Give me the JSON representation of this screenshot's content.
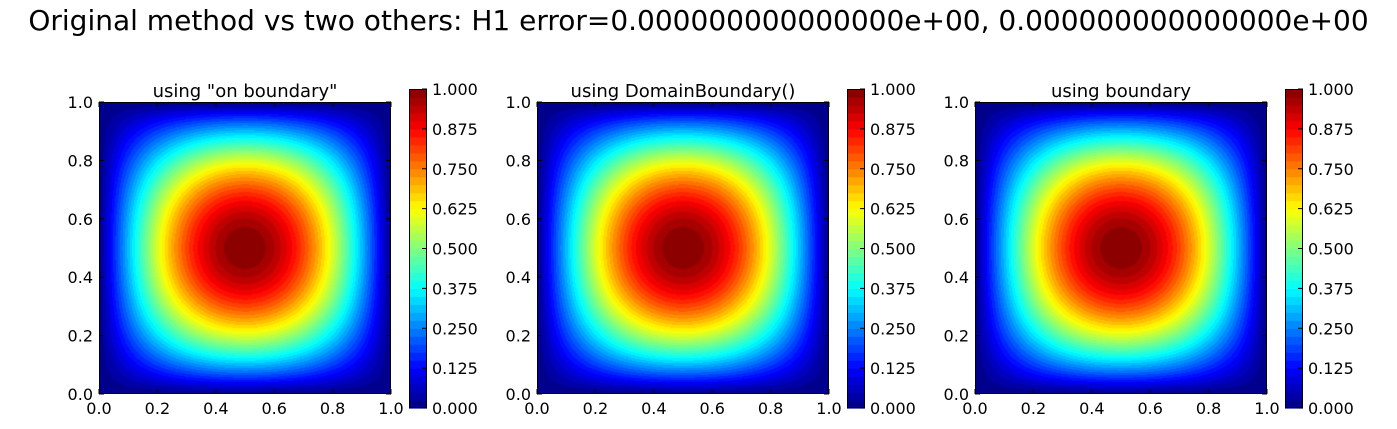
{
  "suptitle": "Original method vs two others: H1 error=0.000000000000000e+00, 0.000000000000000e+00",
  "chart_data": [
    {
      "type": "heatmap",
      "title": "using \"on boundary\"",
      "xlim": [
        0.0,
        1.0
      ],
      "ylim": [
        0.0,
        1.0
      ],
      "x_ticks": [
        "0.0",
        "0.2",
        "0.4",
        "0.6",
        "0.8",
        "1.0"
      ],
      "y_ticks": [
        "0.0",
        "0.2",
        "0.4",
        "0.6",
        "0.8",
        "1.0"
      ],
      "function": "sin(pi*x)*sin(pi*y)",
      "peak": {
        "x": 0.5,
        "y": 0.5,
        "value": 1.0
      },
      "colormap": "jet",
      "colorbar_ticks": [
        "0.000",
        "0.125",
        "0.250",
        "0.375",
        "0.500",
        "0.625",
        "0.750",
        "0.875",
        "1.000"
      ],
      "colorbar_range": [
        0.0,
        1.0
      ]
    },
    {
      "type": "heatmap",
      "title": "using DomainBoundary()",
      "xlim": [
        0.0,
        1.0
      ],
      "ylim": [
        0.0,
        1.0
      ],
      "x_ticks": [
        "0.0",
        "0.2",
        "0.4",
        "0.6",
        "0.8",
        "1.0"
      ],
      "y_ticks": [
        "0.0",
        "0.2",
        "0.4",
        "0.6",
        "0.8",
        "1.0"
      ],
      "function": "sin(pi*x)*sin(pi*y)",
      "peak": {
        "x": 0.5,
        "y": 0.5,
        "value": 1.0
      },
      "colormap": "jet",
      "colorbar_ticks": [
        "0.000",
        "0.125",
        "0.250",
        "0.375",
        "0.500",
        "0.625",
        "0.750",
        "0.875",
        "1.000"
      ],
      "colorbar_range": [
        0.0,
        1.0
      ]
    },
    {
      "type": "heatmap",
      "title": "using boundary",
      "xlim": [
        0.0,
        1.0
      ],
      "ylim": [
        0.0,
        1.0
      ],
      "x_ticks": [
        "0.0",
        "0.2",
        "0.4",
        "0.6",
        "0.8",
        "1.0"
      ],
      "y_ticks": [
        "0.0",
        "0.2",
        "0.4",
        "0.6",
        "0.8",
        "1.0"
      ],
      "function": "sin(pi*x)*sin(pi*y)",
      "peak": {
        "x": 0.5,
        "y": 0.5,
        "value": 1.0
      },
      "colormap": "jet",
      "colorbar_ticks": [
        "0.000",
        "0.125",
        "0.250",
        "0.375",
        "0.500",
        "0.625",
        "0.750",
        "0.875",
        "1.000"
      ],
      "colorbar_range": [
        0.0,
        1.0
      ]
    }
  ]
}
